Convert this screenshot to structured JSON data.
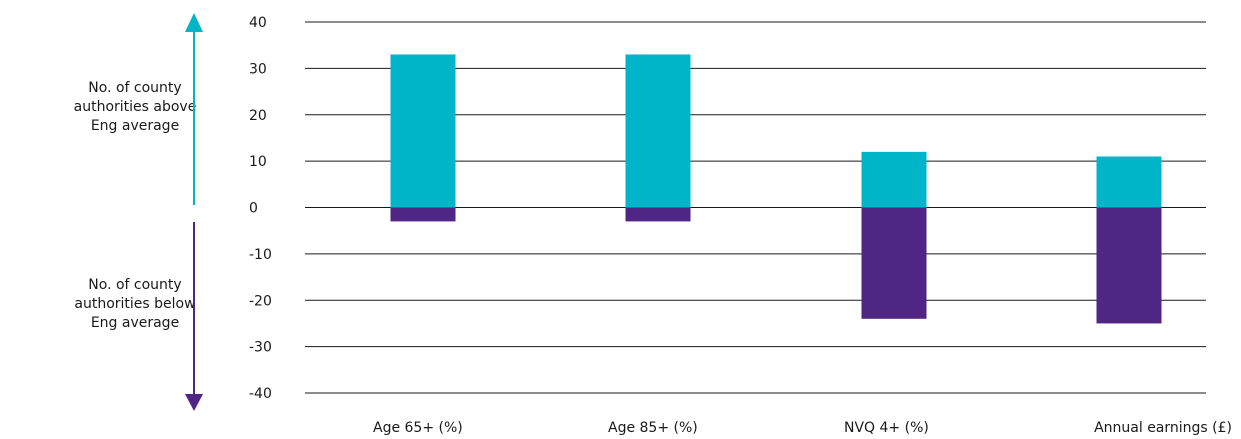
{
  "chart_data": {
    "type": "bar",
    "categories": [
      "Age 65+ (%)",
      "Age 85+ (%)",
      "NVQ 4+ (%)",
      "Annual earnings (£)"
    ],
    "series": [
      {
        "name": "No. of county authorities above Eng average",
        "values": [
          33,
          33,
          12,
          11
        ],
        "color": "#00b5c8"
      },
      {
        "name": "No. of county authorities below Eng average",
        "values": [
          -3,
          -3,
          -24,
          -25
        ],
        "color": "#4f2683"
      }
    ],
    "ylim": [
      -40,
      40
    ],
    "yticks": [
      40,
      30,
      20,
      10,
      0,
      -10,
      -20,
      -30,
      -40
    ],
    "grid": true,
    "above_label": "No. of county authorities above Eng average",
    "below_label": "No. of county authorities below Eng average",
    "above_color": "#00b5c8",
    "below_color": "#4f2683"
  }
}
